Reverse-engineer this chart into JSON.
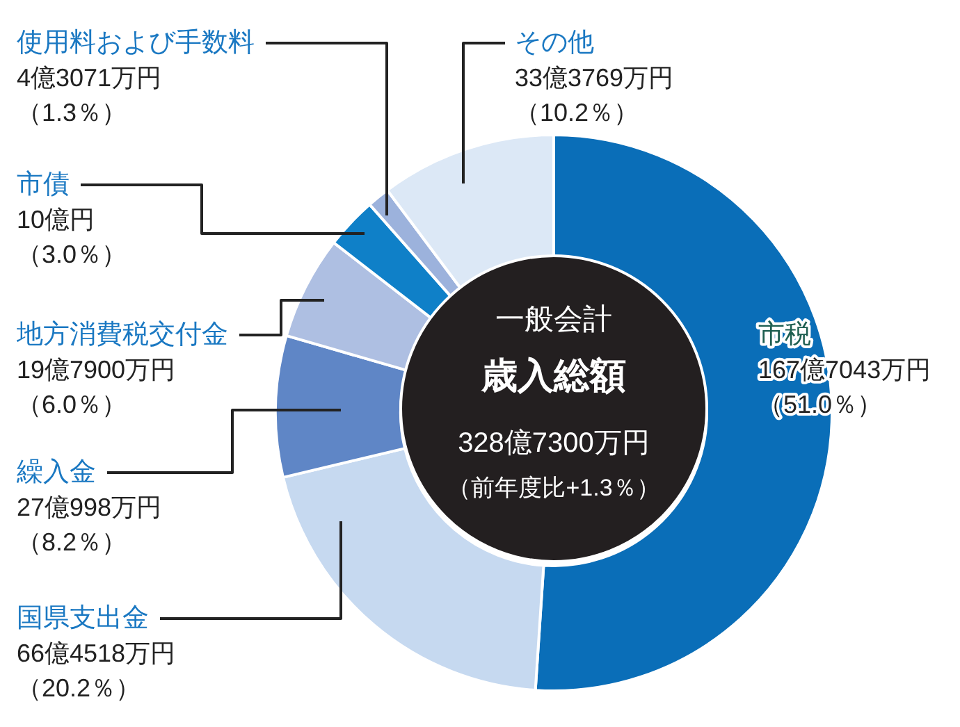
{
  "chart_data": {
    "type": "donut",
    "title": "歳入総額",
    "subtitle": "一般会計",
    "annotations": [
      "328億7300万円",
      "（前年度比+1.3％）"
    ],
    "categories": [
      "市税",
      "国県支出金",
      "繰入金",
      "地方消費税交付金",
      "市債",
      "使用料および手数料",
      "その他"
    ],
    "values": [
      51.0,
      20.2,
      8.2,
      6.0,
      3.0,
      1.3,
      10.2
    ],
    "colors": [
      "#0a6eb8",
      "#c6d9f0",
      "#5f86c6",
      "#aebfe2",
      "#0f80c8",
      "#9cb2dc",
      "#dce8f6"
    ],
    "value_labels": [
      [
        "167億7043万円",
        "（51.0％）"
      ],
      [
        "66億4518万円",
        "（20.2％）"
      ],
      [
        "27億998万円",
        "（8.2％）"
      ],
      [
        "19億7900万円",
        "（6.0％）"
      ],
      [
        "10億円",
        "（3.0％）"
      ],
      [
        "4億3071万円",
        "（1.3％）"
      ],
      [
        "33億3769万円",
        "（10.2％）"
      ]
    ]
  }
}
